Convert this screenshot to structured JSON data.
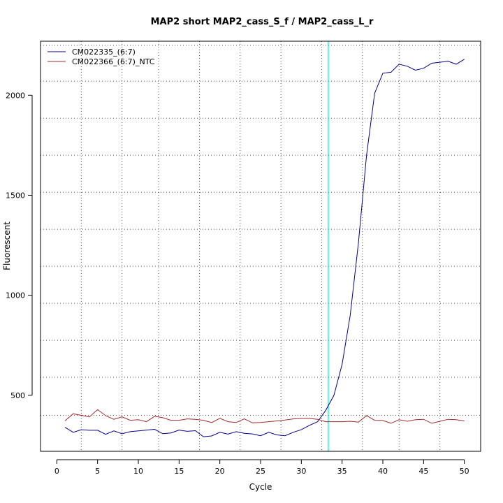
{
  "chart_data": {
    "type": "line",
    "title": "MAP2 short MAP2_cass_S_f / MAP2_cass_L_r",
    "xlabel": "Cycle",
    "ylabel": "Fluorescent",
    "xlim": [
      -2,
      52
    ],
    "ylim": [
      220,
      2270
    ],
    "x_ticks": [
      0,
      5,
      10,
      15,
      20,
      25,
      30,
      35,
      40,
      45,
      50
    ],
    "y_ticks": [
      500,
      1000,
      1500,
      2000
    ],
    "x_grid": [
      3,
      8,
      12.5,
      17.5,
      22.5,
      27.5,
      32.5,
      37.5,
      42,
      47
    ],
    "y_grid": [
      400,
      590,
      775,
      960,
      1145,
      1330,
      1515,
      1700,
      1885,
      2070,
      2250
    ],
    "threshold": {
      "cycle": 33.3,
      "color": "#00ffff"
    },
    "legend_position": "top-left",
    "series": [
      {
        "name": "CM022335_(6:7)",
        "color": "#00008b",
        "x": [
          1,
          2,
          3,
          4,
          5,
          6,
          7,
          8,
          9,
          10,
          11,
          12,
          13,
          14,
          15,
          16,
          17,
          18,
          19,
          20,
          21,
          22,
          23,
          24,
          25,
          26,
          27,
          28,
          29,
          30,
          31,
          32,
          33,
          34,
          35,
          36,
          37,
          38,
          39,
          40,
          41,
          42,
          43,
          44,
          45,
          46,
          47,
          48,
          49,
          50
        ],
        "y": [
          340,
          315,
          328,
          325,
          325,
          305,
          322,
          308,
          318,
          322,
          326,
          330,
          308,
          312,
          326,
          320,
          323,
          293,
          297,
          315,
          306,
          318,
          310,
          307,
          298,
          315,
          302,
          298,
          315,
          328,
          350,
          368,
          425,
          500,
          655,
          900,
          1260,
          1700,
          2010,
          2110,
          2115,
          2155,
          2145,
          2125,
          2135,
          2160,
          2165,
          2170,
          2155,
          2180
        ]
      },
      {
        "name": "CM022366_(6:7)_NTC",
        "color": "#a52a2a",
        "x": [
          1,
          2,
          3,
          4,
          5,
          6,
          7,
          8,
          9,
          10,
          11,
          12,
          13,
          14,
          15,
          16,
          17,
          18,
          19,
          20,
          21,
          22,
          23,
          24,
          25,
          26,
          27,
          28,
          29,
          30,
          31,
          32,
          33,
          34,
          35,
          36,
          37,
          38,
          39,
          40,
          41,
          42,
          43,
          44,
          45,
          46,
          47,
          48,
          49,
          50
        ],
        "y": [
          372,
          408,
          400,
          392,
          428,
          398,
          380,
          392,
          375,
          378,
          368,
          395,
          388,
          375,
          375,
          382,
          380,
          375,
          364,
          385,
          368,
          364,
          382,
          362,
          364,
          368,
          372,
          376,
          382,
          384,
          384,
          380,
          368,
          368,
          368,
          370,
          366,
          398,
          375,
          374,
          360,
          378,
          370,
          378,
          380,
          360,
          370,
          380,
          378,
          372
        ]
      }
    ]
  }
}
